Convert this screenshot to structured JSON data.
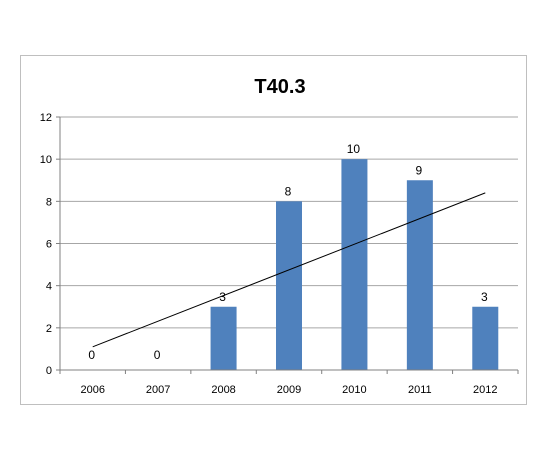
{
  "chart_data": {
    "type": "bar",
    "title": "T40.3",
    "xlabel": "",
    "ylabel": "",
    "categories": [
      "2006",
      "2007",
      "2008",
      "2009",
      "2010",
      "2011",
      "2012"
    ],
    "values": [
      0,
      0,
      3,
      8,
      10,
      9,
      3
    ],
    "data_labels": [
      "0",
      "0",
      "3",
      "8",
      "10",
      "9",
      "3"
    ],
    "ylim": [
      0,
      12
    ],
    "yticks": [
      "0",
      "2",
      "4",
      "6",
      "8",
      "10",
      "12"
    ],
    "grid": true,
    "legend": "none",
    "trendline": {
      "type": "linear",
      "start": 1.1,
      "end": 8.4
    },
    "colors": {
      "bar": "#4f81bd",
      "grid": "#a6a6a6",
      "trendline": "#000000"
    }
  }
}
